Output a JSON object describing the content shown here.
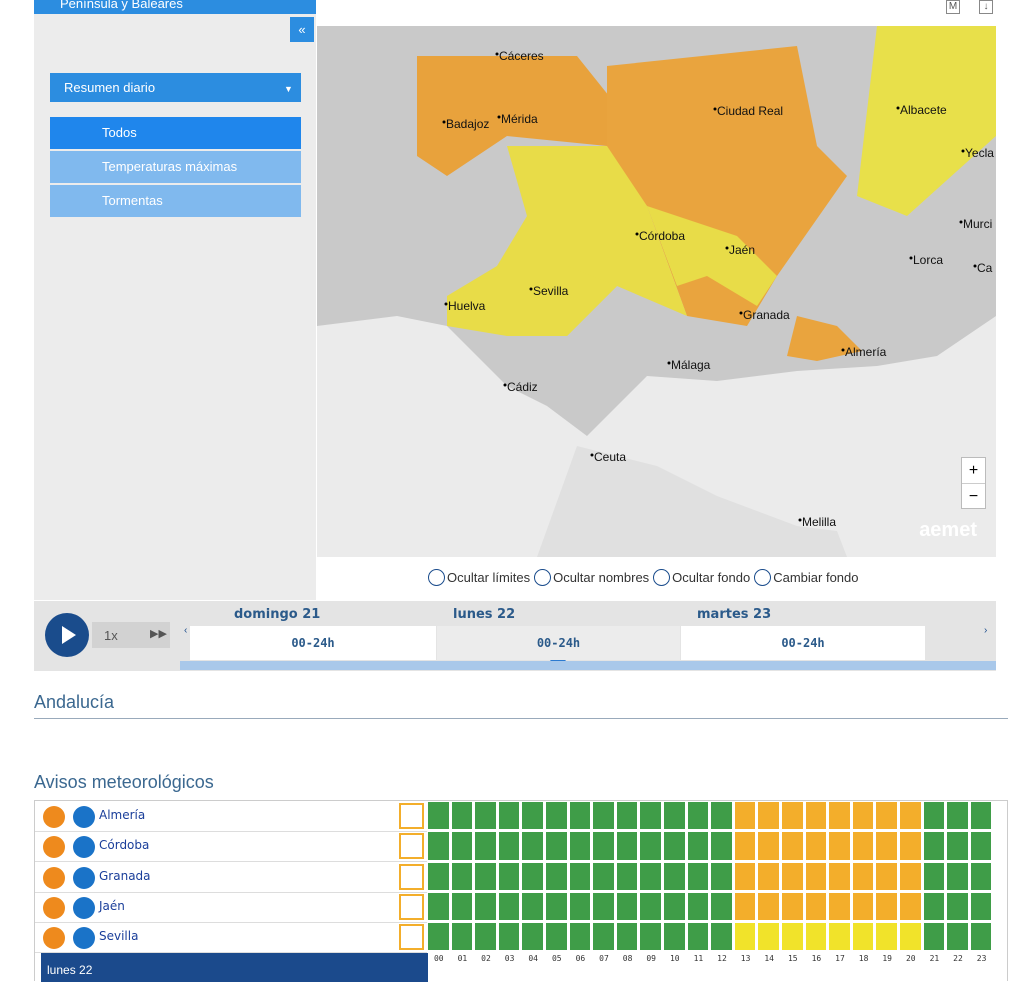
{
  "sidebar": {
    "region": "Península y Baleares",
    "collapse": "«",
    "view": "Resumen diario",
    "layers": [
      "Todos",
      "Temperaturas máximas",
      "Tormentas"
    ]
  },
  "map": {
    "buttons": [
      "M",
      "↓"
    ],
    "cities": [
      "Cáceres",
      "Mérida",
      "Badajoz",
      "Ciudad Real",
      "Albacete",
      "Yecla",
      "Murci",
      "Córdoba",
      "Jaén",
      "Lorca",
      "Ca",
      "Huelva",
      "Sevilla",
      "Granada",
      "Almería",
      "Málaga",
      "Cádiz",
      "Ceuta",
      "Melilla"
    ],
    "logo": "aemet",
    "zoom": [
      "+",
      "−"
    ],
    "options": [
      "Ocultar límites",
      "Ocultar nombres",
      "Ocultar fondo",
      "Cambiar fondo"
    ]
  },
  "timeline": {
    "speed": "1x",
    "days": [
      {
        "day": "domingo 21",
        "range": "00-24h"
      },
      {
        "day": "lunes 22",
        "range": "00-24h"
      },
      {
        "day": "martes 23",
        "range": "00-24h"
      }
    ]
  },
  "region_title": "Andalucía",
  "warnings": {
    "title": "Avisos meteorológicos",
    "hours": [
      "00",
      "01",
      "02",
      "03",
      "04",
      "05",
      "06",
      "07",
      "08",
      "09",
      "10",
      "11",
      "12",
      "13",
      "14",
      "15",
      "16",
      "17",
      "18",
      "19",
      "20",
      "21",
      "22",
      "23"
    ],
    "rows": [
      {
        "name": "Almería",
        "cells": [
          "green",
          "green",
          "green",
          "green",
          "green",
          "green",
          "green",
          "green",
          "green",
          "green",
          "green",
          "green",
          "green",
          "orange",
          "orange",
          "orange",
          "orange",
          "orange",
          "orange",
          "orange",
          "orange",
          "green",
          "green",
          "green"
        ]
      },
      {
        "name": "Córdoba",
        "cells": [
          "green",
          "green",
          "green",
          "green",
          "green",
          "green",
          "green",
          "green",
          "green",
          "green",
          "green",
          "green",
          "green",
          "orange",
          "orange",
          "orange",
          "orange",
          "orange",
          "orange",
          "orange",
          "orange",
          "green",
          "green",
          "green"
        ]
      },
      {
        "name": "Granada",
        "cells": [
          "green",
          "green",
          "green",
          "green",
          "green",
          "green",
          "green",
          "green",
          "green",
          "green",
          "green",
          "green",
          "green",
          "orange",
          "orange",
          "orange",
          "orange",
          "orange",
          "orange",
          "orange",
          "orange",
          "green",
          "green",
          "green"
        ]
      },
      {
        "name": "Jaén",
        "cells": [
          "green",
          "green",
          "green",
          "green",
          "green",
          "green",
          "green",
          "green",
          "green",
          "green",
          "green",
          "green",
          "green",
          "orange",
          "orange",
          "orange",
          "orange",
          "orange",
          "orange",
          "orange",
          "orange",
          "green",
          "green",
          "green"
        ]
      },
      {
        "name": "Sevilla",
        "cells": [
          "green",
          "green",
          "green",
          "green",
          "green",
          "green",
          "green",
          "green",
          "green",
          "green",
          "green",
          "green",
          "green",
          "yellow",
          "yellow",
          "yellow",
          "yellow",
          "yellow",
          "yellow",
          "yellow",
          "yellow",
          "green",
          "green",
          "green"
        ]
      }
    ],
    "day": "lunes 22"
  }
}
